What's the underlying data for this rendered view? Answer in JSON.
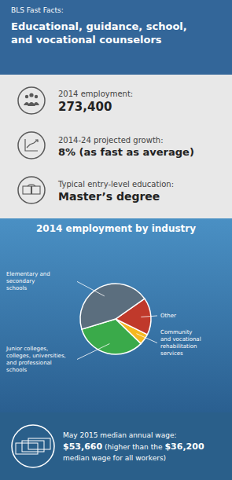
{
  "chart_data": {
    "type": "pie",
    "title": "2014 employment by industry",
    "categories": [
      "Junior colleges,\ncolleges, universities,\nand professional\nschools",
      "Community\nand vocational\nrehabilitation\nservices",
      "Other",
      "Elementary and\nsecondary\nschools"
    ],
    "values": [
      33,
      5,
      17,
      45
    ],
    "colors": [
      "#3aaa4a",
      "#f5b820",
      "#c0392b",
      "#5b6e7e"
    ],
    "annotations": [
      "BLS Fast Facts:",
      "Educational, guidance, school,\nand vocational counselors",
      "2014 employment:",
      "273,400",
      "2014-24 projected growth:",
      "8% (as fast as average)",
      "Typical entry-level education:",
      "Master’s degree",
      "May 2015 median annual wage:",
      "$53,660",
      "(higher than the",
      "$36,200",
      "median wage for all workers)"
    ]
  }
}
